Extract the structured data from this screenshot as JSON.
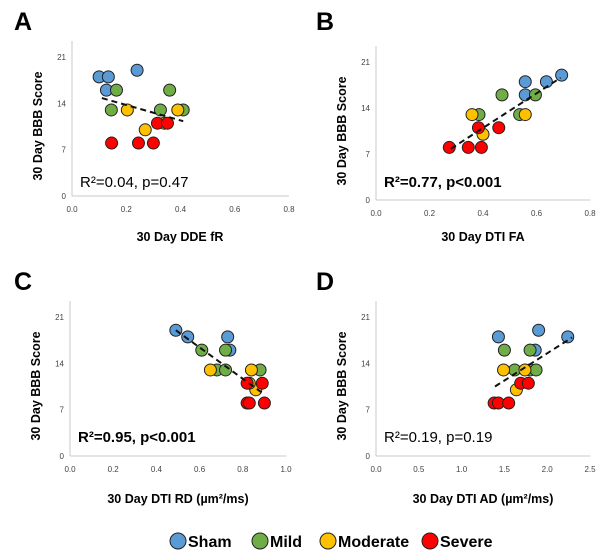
{
  "colors": {
    "Sham": "#5b9bd5",
    "Mild": "#70ad47",
    "Moderate": "#ffc000",
    "Severe": "#ff0000"
  },
  "legend": [
    "Sham",
    "Mild",
    "Moderate",
    "Severe"
  ],
  "chart_data": [
    {
      "type": "scatter",
      "panel": "A",
      "xlabel": "30 Day DDE fR",
      "ylabel": "30 Day BBB Score",
      "xlim": [
        0,
        0.8
      ],
      "xticks": [
        "0.0",
        "0.2",
        "0.4",
        "0.6",
        "0.8"
      ],
      "ylim": [
        0,
        21
      ],
      "yticks": [
        "0",
        "7",
        "14",
        "21"
      ],
      "stat": "R²=0.04, p=0.47",
      "stat_bold": false,
      "trend": [
        [
          0.11,
          14.8
        ],
        [
          0.41,
          11.3
        ]
      ],
      "series": [
        {
          "name": "Sham",
          "points": [
            [
              0.1,
              18
            ],
            [
              0.134,
              18
            ],
            [
              0.127,
              16
            ],
            [
              0.24,
              19
            ]
          ]
        },
        {
          "name": "Mild",
          "points": [
            [
              0.164,
              16
            ],
            [
              0.145,
              13
            ],
            [
              0.326,
              13
            ],
            [
              0.36,
              16
            ],
            [
              0.41,
              13
            ]
          ]
        },
        {
          "name": "Moderate",
          "points": [
            [
              0.204,
              13
            ],
            [
              0.27,
              10
            ],
            [
              0.39,
              13
            ],
            [
              0.34,
              11
            ]
          ]
        },
        {
          "name": "Severe",
          "points": [
            [
              0.146,
              8
            ],
            [
              0.245,
              8
            ],
            [
              0.3,
              8
            ],
            [
              0.315,
              11
            ],
            [
              0.352,
              11
            ]
          ]
        }
      ]
    },
    {
      "type": "scatter",
      "panel": "B",
      "xlabel": "30 Day DTI FA",
      "ylabel": "30 Day BBB Score",
      "xlim": [
        0,
        0.8
      ],
      "xticks": [
        "0.0",
        "0.2",
        "0.4",
        "0.6",
        "0.8"
      ],
      "ylim": [
        0,
        21
      ],
      "yticks": [
        "0",
        "7",
        "14",
        "21"
      ],
      "stat": "R²=0.77, p<0.001",
      "stat_bold": true,
      "trend": [
        [
          0.28,
          7.8
        ],
        [
          0.69,
          18.6
        ]
      ],
      "series": [
        {
          "name": "Sham",
          "points": [
            [
              0.558,
              18
            ],
            [
              0.558,
              16
            ],
            [
              0.637,
              18
            ],
            [
              0.694,
              19
            ]
          ]
        },
        {
          "name": "Mild",
          "points": [
            [
              0.385,
              13
            ],
            [
              0.471,
              16
            ],
            [
              0.537,
              13
            ],
            [
              0.596,
              16
            ]
          ]
        },
        {
          "name": "Moderate",
          "points": [
            [
              0.359,
              13
            ],
            [
              0.4,
              10
            ],
            [
              0.558,
              13
            ]
          ]
        },
        {
          "name": "Severe",
          "points": [
            [
              0.274,
              8
            ],
            [
              0.345,
              8
            ],
            [
              0.394,
              8
            ],
            [
              0.383,
              11
            ],
            [
              0.459,
              11
            ]
          ]
        }
      ]
    },
    {
      "type": "scatter",
      "panel": "C",
      "xlabel": "30 Day DTI RD (µm²/ms)",
      "ylabel": "30 Day BBB Score",
      "xlim": [
        0,
        1.0
      ],
      "xticks": [
        "0.0",
        "0.2",
        "0.4",
        "0.6",
        "0.8",
        "1.0"
      ],
      "ylim": [
        0,
        21
      ],
      "yticks": [
        "0",
        "7",
        "14",
        "21"
      ],
      "stat": "R²=0.95, p<0.001",
      "stat_bold": true,
      "trend": [
        [
          0.49,
          19
        ],
        [
          0.9,
          9.3
        ]
      ],
      "series": [
        {
          "name": "Sham",
          "points": [
            [
              0.49,
              19
            ],
            [
              0.545,
              18
            ],
            [
              0.73,
              18
            ],
            [
              0.74,
              16
            ]
          ]
        },
        {
          "name": "Mild",
          "points": [
            [
              0.61,
              16
            ],
            [
              0.72,
              16
            ],
            [
              0.68,
              13
            ],
            [
              0.72,
              13
            ],
            [
              0.88,
              13
            ]
          ]
        },
        {
          "name": "Moderate",
          "points": [
            [
              0.65,
              13
            ],
            [
              0.84,
              13
            ],
            [
              0.86,
              10
            ],
            [
              0.83,
              11
            ]
          ]
        },
        {
          "name": "Severe",
          "points": [
            [
              0.82,
              11
            ],
            [
              0.89,
              11
            ],
            [
              0.82,
              8
            ],
            [
              0.83,
              8
            ],
            [
              0.9,
              8
            ]
          ]
        }
      ]
    },
    {
      "type": "scatter",
      "panel": "D",
      "xlabel": "30 Day DTI AD (µm²/ms)",
      "ylabel": "30 Day BBB Score",
      "xlim": [
        0,
        2.5
      ],
      "xticks": [
        "0.0",
        "0.5",
        "1.0",
        "1.5",
        "2.0",
        "2.5"
      ],
      "ylim": [
        0,
        21
      ],
      "yticks": [
        "0",
        "7",
        "14",
        "21"
      ],
      "stat": "R²=0.19, p=0.19",
      "stat_bold": false,
      "trend": [
        [
          1.39,
          10.5
        ],
        [
          2.29,
          17.9
        ]
      ],
      "series": [
        {
          "name": "Sham",
          "points": [
            [
              1.43,
              18
            ],
            [
              1.9,
              19
            ],
            [
              2.24,
              18
            ],
            [
              1.86,
              16
            ]
          ]
        },
        {
          "name": "Mild",
          "points": [
            [
              1.5,
              16
            ],
            [
              1.62,
              13
            ],
            [
              1.8,
              16
            ],
            [
              1.8,
              13
            ],
            [
              1.87,
              13
            ]
          ]
        },
        {
          "name": "Moderate",
          "points": [
            [
              1.49,
              13
            ],
            [
              1.74,
              13
            ],
            [
              1.64,
              10
            ]
          ]
        },
        {
          "name": "Severe",
          "points": [
            [
              1.38,
              8
            ],
            [
              1.43,
              8
            ],
            [
              1.55,
              8
            ],
            [
              1.69,
              11
            ],
            [
              1.78,
              11
            ]
          ]
        }
      ]
    }
  ]
}
